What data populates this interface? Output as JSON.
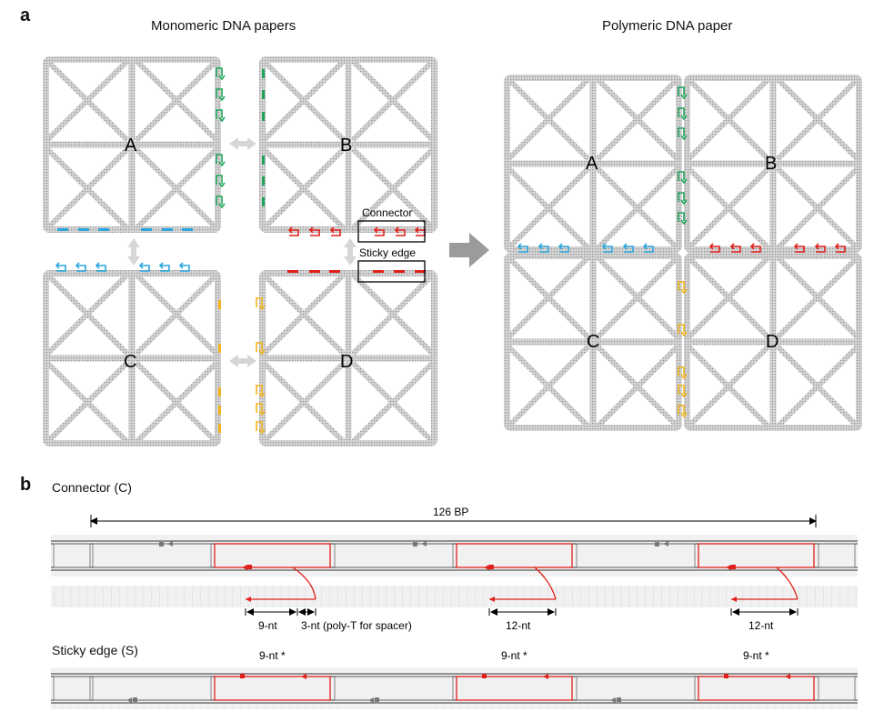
{
  "panel_a": {
    "letter": "a",
    "title_left": "Monomeric DNA papers",
    "title_right": "Polymeric DNA paper",
    "tile_labels": [
      "A",
      "B",
      "C",
      "D"
    ],
    "callouts": {
      "connector": "Connector",
      "sticky_edge": "Sticky edge"
    }
  },
  "panel_b": {
    "letter": "b",
    "connector_title": "Connector (C)",
    "span_label": "126 BP",
    "measures": [
      "9-nt",
      "3-nt (poly-T for spacer)",
      "12-nt",
      "12-nt"
    ],
    "sticky_title": "Sticky edge (S)",
    "sticky_labels": [
      "9-nt *",
      "9-nt *",
      "9-nt *"
    ]
  },
  "colors": {
    "connector_green": "#1fa55a",
    "connector_blue": "#2aa6de",
    "connector_red": "#e0201b",
    "connector_yellow": "#f2b31a",
    "tile_gray": "#9a9a9a",
    "arrow_gray": "#9b9b9b",
    "strand_red": "#e0201b"
  }
}
